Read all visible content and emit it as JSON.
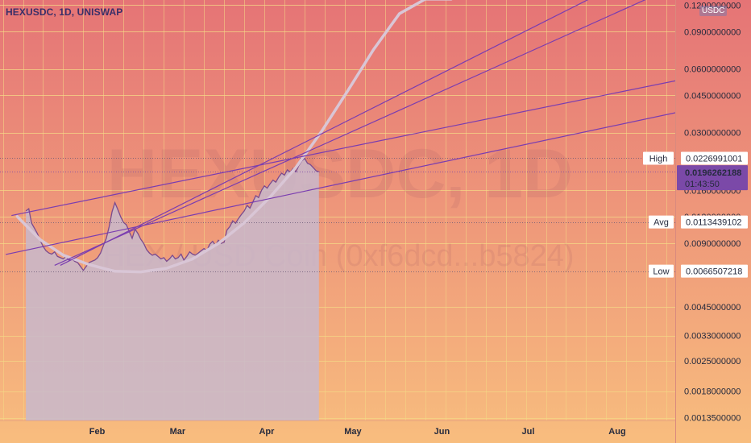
{
  "header": {
    "title": "HEXUSDC, 1D, UNISWAP",
    "currency_badge": "USDC"
  },
  "watermark": {
    "symbol_interval": "HEXUSDC, 1D",
    "description": "HEX / USD Coin (0xf6dcd...b5824)"
  },
  "price_scale": {
    "ticks": [
      "0.1200000000",
      "0.0900000000",
      "0.0600000000",
      "0.0450000000",
      "0.0300000000",
      "0.0160000000",
      "0.0120000000",
      "0.0090000000",
      "0.0045000000",
      "0.0033000000",
      "0.0025000000",
      "0.0018000000",
      "0.0013500000"
    ],
    "labels": {
      "high_tag": "High",
      "high_value": "0.0226991001",
      "avg_tag": "Avg",
      "avg_value": "0.0113439102",
      "low_tag": "Low",
      "low_value": "0.0066507218",
      "last_value": "0.0196262188",
      "countdown": "01:43:50"
    }
  },
  "time_axis": {
    "labels": [
      "Feb",
      "Mar",
      "Apr",
      "May",
      "Jun",
      "Jul",
      "Aug"
    ]
  },
  "colors": {
    "bg_top": "#e57476",
    "bg_bottom": "#f8bd7e",
    "price_line": "#7b4a8e",
    "price_fill": "#c8b8cc",
    "trendline": "#7a3db0",
    "curve": "#d9c6d6",
    "last_price": "#7b49a8",
    "grid": "#f5d886"
  },
  "chart_data": {
    "type": "line",
    "scale": "log",
    "x_unit": "date",
    "y_unit": "USDC",
    "xlim": [
      "2023-01-01",
      "2023-08-24"
    ],
    "ylim": [
      0.00131,
      0.127
    ],
    "grid": true,
    "series": [
      {
        "x": [
          "2023-01-10",
          "2023-01-11",
          "2023-01-12",
          "2023-01-13",
          "2023-01-14",
          "2023-01-15",
          "2023-01-16",
          "2023-01-17",
          "2023-01-18",
          "2023-01-19",
          "2023-01-20",
          "2023-01-21",
          "2023-01-22",
          "2023-01-23",
          "2023-01-24",
          "2023-01-25",
          "2023-01-26",
          "2023-01-27",
          "2023-01-28",
          "2023-01-29",
          "2023-01-30",
          "2023-01-31",
          "2023-02-01",
          "2023-02-02",
          "2023-02-03",
          "2023-02-04",
          "2023-02-05",
          "2023-02-06",
          "2023-02-07",
          "2023-02-08",
          "2023-02-09",
          "2023-02-10",
          "2023-02-11",
          "2023-02-12",
          "2023-02-13",
          "2023-02-14",
          "2023-02-15",
          "2023-02-16",
          "2023-02-17",
          "2023-02-18",
          "2023-02-19",
          "2023-02-20",
          "2023-02-21",
          "2023-02-22",
          "2023-02-23",
          "2023-02-24",
          "2023-02-25",
          "2023-02-26",
          "2023-02-27",
          "2023-02-28",
          "2023-03-01",
          "2023-03-02",
          "2023-03-03",
          "2023-03-04",
          "2023-03-05",
          "2023-03-06",
          "2023-03-07",
          "2023-03-08",
          "2023-03-09",
          "2023-03-10",
          "2023-03-11",
          "2023-03-12",
          "2023-03-13",
          "2023-03-14",
          "2023-03-15",
          "2023-03-16",
          "2023-03-17",
          "2023-03-18",
          "2023-03-19",
          "2023-03-20",
          "2023-03-21",
          "2023-03-22",
          "2023-03-23",
          "2023-03-24",
          "2023-03-25",
          "2023-03-26",
          "2023-03-27",
          "2023-03-28",
          "2023-03-29",
          "2023-03-30",
          "2023-03-31",
          "2023-04-01",
          "2023-04-02",
          "2023-04-03",
          "2023-04-04",
          "2023-04-05",
          "2023-04-06",
          "2023-04-07",
          "2023-04-08",
          "2023-04-09",
          "2023-04-10",
          "2023-04-11",
          "2023-04-12",
          "2023-04-13",
          "2023-04-14",
          "2023-04-15",
          "2023-04-16",
          "2023-04-17",
          "2023-04-18",
          "2023-04-19",
          "2023-04-20",
          "2023-04-21",
          "2023-04-22"
        ],
        "y": [
          0.0128,
          0.0131,
          0.0112,
          0.0106,
          0.01,
          0.0093,
          0.0087,
          0.0083,
          0.0081,
          0.008,
          0.0082,
          0.0078,
          0.0077,
          0.0076,
          0.0078,
          0.0075,
          0.0076,
          0.0074,
          0.0073,
          0.007,
          0.0067,
          0.007,
          0.0073,
          0.0074,
          0.0075,
          0.0077,
          0.0081,
          0.0088,
          0.0095,
          0.0108,
          0.0127,
          0.014,
          0.013,
          0.012,
          0.0113,
          0.011,
          0.0102,
          0.0095,
          0.0105,
          0.01,
          0.0094,
          0.009,
          0.0084,
          0.0081,
          0.0079,
          0.008,
          0.0078,
          0.0076,
          0.0077,
          0.0074,
          0.0076,
          0.0079,
          0.0076,
          0.0077,
          0.008,
          0.0075,
          0.0078,
          0.0082,
          0.008,
          0.0079,
          0.0081,
          0.0083,
          0.0085,
          0.0083,
          0.0089,
          0.0092,
          0.0088,
          0.0093,
          0.009,
          0.0091,
          0.0104,
          0.0108,
          0.0115,
          0.0112,
          0.0118,
          0.0123,
          0.0128,
          0.0136,
          0.0132,
          0.0141,
          0.0151,
          0.0148,
          0.016,
          0.0168,
          0.0164,
          0.0172,
          0.0179,
          0.0175,
          0.0185,
          0.0193,
          0.0189,
          0.02,
          0.0195,
          0.0203,
          0.0196,
          0.021,
          0.022,
          0.0227,
          0.0215,
          0.0212,
          0.0205,
          0.0198,
          0.0196
        ]
      }
    ],
    "levels": {
      "high": 0.0226991001,
      "avg": 0.0113439102,
      "low": 0.0066507218,
      "last": 0.0196262188
    },
    "trendlines": [
      {
        "x": [
          "2023-01-03",
          "2023-08-24"
        ],
        "y": [
          0.00797,
          0.03724
        ]
      },
      {
        "x": [
          "2023-01-05",
          "2023-08-24"
        ],
        "y": [
          0.01218,
          0.05272
        ]
      },
      {
        "x": [
          "2023-01-22",
          "2023-07-25"
        ],
        "y": [
          0.00708,
          0.1282
        ]
      },
      {
        "x": [
          "2023-01-20",
          "2023-08-14"
        ],
        "y": [
          0.00708,
          0.1282
        ]
      }
    ],
    "curve": {
      "x": [
        "2023-01-07",
        "2023-01-15",
        "2023-01-23",
        "2023-02-01",
        "2023-02-10",
        "2023-02-19",
        "2023-02-28",
        "2023-03-09",
        "2023-03-18",
        "2023-03-27",
        "2023-04-05",
        "2023-04-14",
        "2023-04-23",
        "2023-05-02",
        "2023-05-11",
        "2023-05-20",
        "2023-05-29",
        "2023-06-07"
      ],
      "y": [
        0.01204,
        0.00936,
        0.00791,
        0.00714,
        0.00664,
        0.00659,
        0.00686,
        0.00759,
        0.00898,
        0.01125,
        0.0149,
        0.02055,
        0.03051,
        0.04726,
        0.07406,
        0.1094,
        0.1282,
        0.1282
      ]
    }
  }
}
